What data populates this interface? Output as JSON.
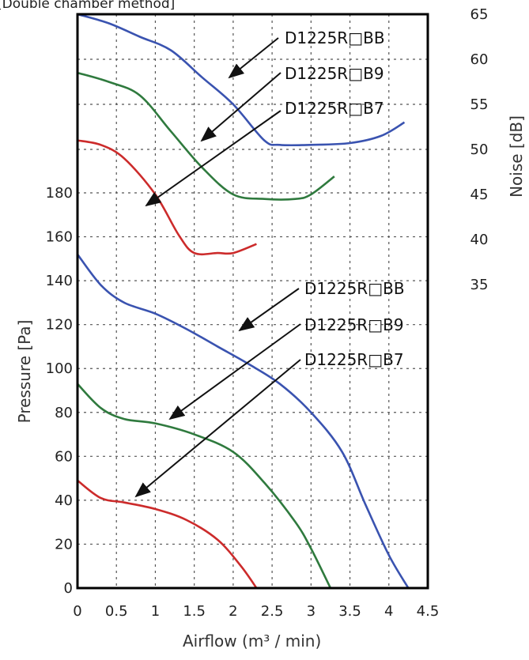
{
  "subtitle": "[Double chamber method]",
  "chart_data": {
    "type": "line",
    "xlabel": "Airflow (m³ / min)",
    "ylabel": "Pressure [Pa]",
    "y2label": "Noise [dB]",
    "xlim": [
      0,
      4.5
    ],
    "ylim": [
      0,
      200
    ],
    "y2lim": [
      30,
      65
    ],
    "x_ticks": [
      "0",
      "0.5",
      "1",
      "1.5",
      "2",
      "2.5",
      "3",
      "3.5",
      "4",
      "4.5"
    ],
    "y_ticks": [
      "0",
      "20",
      "40",
      "60",
      "80",
      "100",
      "120",
      "140",
      "160",
      "180"
    ],
    "y2_ticks": [
      "35",
      "40",
      "45",
      "50",
      "55",
      "60",
      "65"
    ],
    "grid": true,
    "colors": {
      "BB": "#3a53b0",
      "B9": "#2f7a3e",
      "B7": "#cc2b2b"
    },
    "pressure_series": [
      {
        "name": "D1225R□BB",
        "x": [
          0,
          0.3,
          0.6,
          1.0,
          1.4,
          1.8,
          2.2,
          2.6,
          3.0,
          3.4,
          3.7,
          4.0,
          4.25
        ],
        "y": [
          152,
          138,
          130,
          125,
          118,
          110,
          102,
          93,
          80,
          62,
          38,
          15,
          0
        ]
      },
      {
        "name": "D1225R□B9",
        "x": [
          0,
          0.3,
          0.6,
          1.0,
          1.5,
          2.0,
          2.4,
          2.8,
          3.0,
          3.25
        ],
        "y": [
          93,
          82,
          77,
          75,
          70,
          62,
          48,
          30,
          18,
          0
        ]
      },
      {
        "name": "D1225R□B7",
        "x": [
          0,
          0.3,
          0.6,
          1.0,
          1.4,
          1.8,
          2.1,
          2.3
        ],
        "y": [
          49,
          41,
          39,
          36,
          31,
          22,
          10,
          0
        ]
      }
    ],
    "noise_series": [
      {
        "name": "D1225R□BB",
        "x": [
          0,
          0.4,
          0.8,
          1.2,
          1.6,
          2.0,
          2.4,
          2.6,
          3.0,
          3.5,
          3.9,
          4.2
        ],
        "y": [
          65,
          64,
          62.5,
          61,
          58,
          55,
          51,
          50.5,
          50.5,
          50.7,
          51.5,
          53
        ]
      },
      {
        "name": "D1225R□B9",
        "x": [
          0,
          0.4,
          0.8,
          1.2,
          1.6,
          2.0,
          2.4,
          2.8,
          3.0,
          3.3
        ],
        "y": [
          58.5,
          57.5,
          56,
          52,
          48,
          45,
          44.5,
          44.5,
          45,
          47
        ]
      },
      {
        "name": "D1225R□B7",
        "x": [
          0,
          0.3,
          0.6,
          1.0,
          1.3,
          1.5,
          1.8,
          2.0,
          2.3
        ],
        "y": [
          51,
          50.5,
          49,
          45,
          40.5,
          38.5,
          38.5,
          38.5,
          39.5
        ]
      }
    ],
    "labels": {
      "noise_bb": "D1225R□BB",
      "noise_b9": "D1225R□B9",
      "noise_b7": "D1225R□B7",
      "pressure_bb": "D1225R□BB",
      "pressure_b9": "D1225R□B9",
      "pressure_b7": "D1225R□B7"
    }
  }
}
